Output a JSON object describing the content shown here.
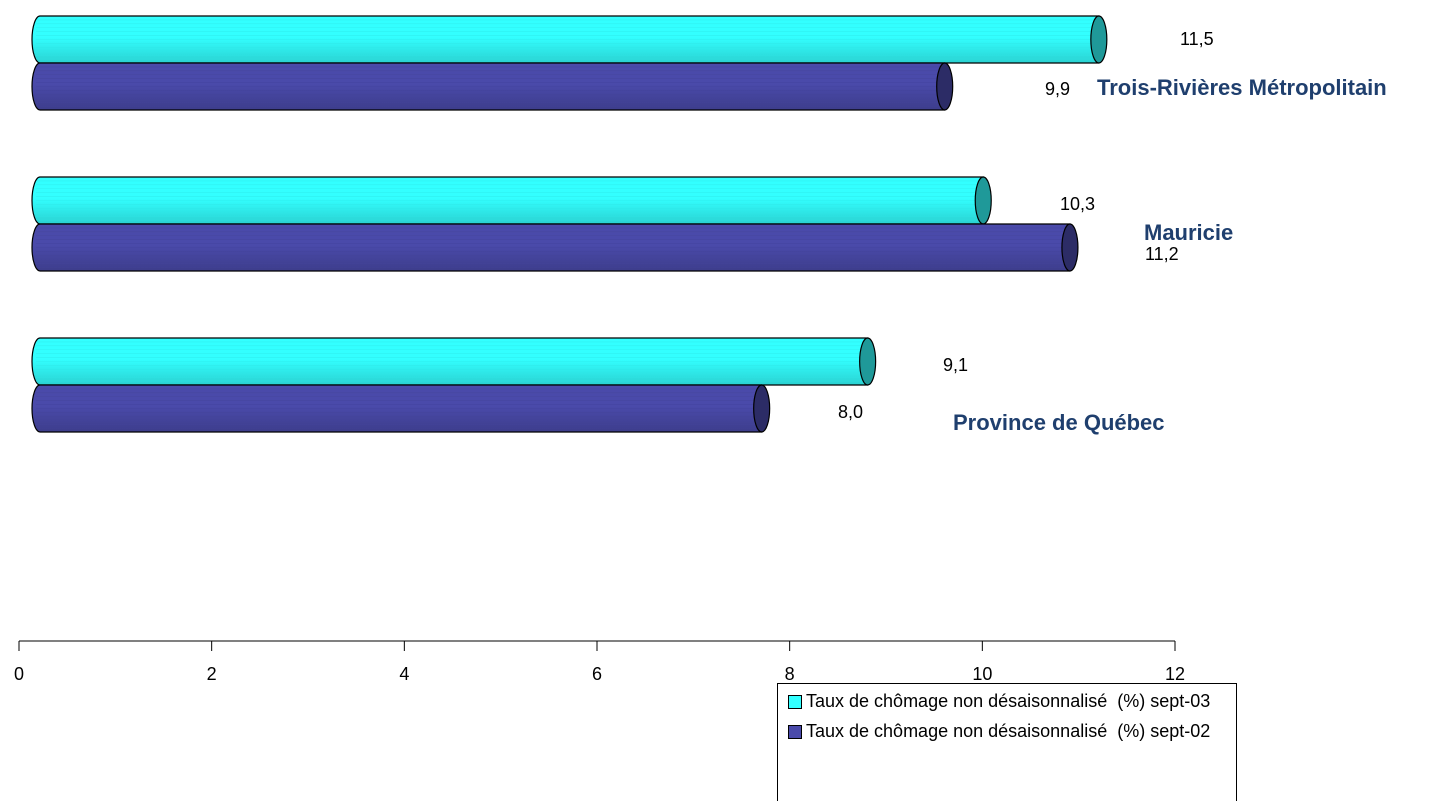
{
  "chart_data": {
    "type": "bar",
    "orientation": "horizontal",
    "categories": [
      "Trois-Rivières Métropolitain",
      "Mauricie",
      "Province de Québec"
    ],
    "series": [
      {
        "name": "Taux de chômage non désaisonnalisé  (%) sept-03",
        "values": [
          11.5,
          10.3,
          9.1
        ],
        "value_labels": [
          "11,5",
          "10,3",
          "9,1"
        ],
        "color": "#33ffff"
      },
      {
        "name": "Taux de chômage non désaisonnalisé  (%) sept-02",
        "values": [
          9.9,
          11.2,
          8.0
        ],
        "value_labels": [
          "9,9",
          "11,2",
          "8,0"
        ],
        "color": "#4a4aaa"
      }
    ],
    "xlim": [
      0,
      12
    ],
    "xticks": [
      "0",
      "2",
      "4",
      "6",
      "8",
      "10",
      "12"
    ],
    "grid": false,
    "legend_position": "bottom-right",
    "bar_style": "cylinder",
    "label_color": "#1f3f6e"
  }
}
